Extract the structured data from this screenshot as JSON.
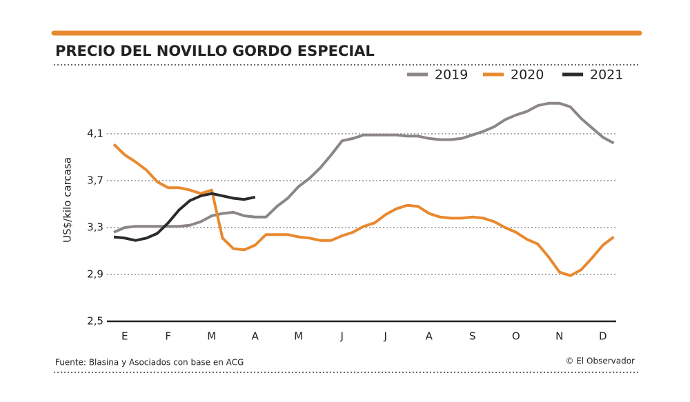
{
  "chart_data": {
    "type": "line",
    "title": "PRECIO DEL NOVILLO GORDO ESPECIAL",
    "y_label": "US$/kilo carcasa",
    "source": "Fuente: Blasina y Asociados con base en ACG",
    "credit": "© El Observador",
    "categories": [
      null,
      "E",
      null,
      null,
      null,
      "F",
      null,
      null,
      null,
      "M",
      null,
      null,
      null,
      "A",
      null,
      null,
      null,
      "M",
      null,
      null,
      null,
      "J",
      null,
      null,
      null,
      "J",
      null,
      null,
      null,
      "A",
      null,
      null,
      null,
      "S",
      null,
      null,
      null,
      "O",
      null,
      null,
      null,
      "N",
      null,
      null,
      null,
      "D",
      null,
      null
    ],
    "ylim": [
      2.5,
      4.4
    ],
    "yticks": [
      {
        "value": 2.5,
        "label": "2,5"
      },
      {
        "value": 2.9,
        "label": "2,9"
      },
      {
        "value": 3.3,
        "label": "3,3"
      },
      {
        "value": 3.7,
        "label": "3,7"
      },
      {
        "value": 4.1,
        "label": "4,1"
      }
    ],
    "grid": true,
    "series": [
      {
        "name": "2019",
        "color": "#8c8786",
        "values": [
          3.26,
          3.3,
          3.31,
          3.31,
          3.31,
          3.31,
          3.31,
          3.32,
          3.35,
          3.4,
          3.42,
          3.43,
          3.4,
          3.39,
          3.39,
          3.48,
          3.55,
          3.65,
          3.72,
          3.81,
          3.92,
          4.04,
          4.06,
          4.09,
          4.09,
          4.09,
          4.09,
          4.08,
          4.08,
          4.06,
          4.05,
          4.05,
          4.06,
          4.09,
          4.12,
          4.16,
          4.22,
          4.26,
          4.29,
          4.34,
          4.36,
          4.36,
          4.33,
          4.23,
          4.15,
          4.07,
          4.02,
          null
        ]
      },
      {
        "name": "2020",
        "color": "#e8892f",
        "values": [
          4.01,
          3.92,
          3.86,
          3.79,
          3.69,
          3.64,
          3.64,
          3.62,
          3.59,
          3.62,
          3.21,
          3.12,
          3.11,
          3.15,
          3.24,
          3.24,
          3.24,
          3.22,
          3.21,
          3.19,
          3.19,
          3.23,
          3.26,
          3.31,
          3.34,
          3.41,
          3.46,
          3.49,
          3.48,
          3.42,
          3.39,
          3.38,
          3.38,
          3.39,
          3.38,
          3.35,
          3.3,
          3.26,
          3.2,
          3.16,
          3.05,
          2.92,
          2.89,
          2.94,
          3.04,
          3.15,
          3.22,
          null
        ]
      },
      {
        "name": "2021",
        "color": "#2b2b2b",
        "values": [
          3.22,
          3.21,
          3.19,
          3.21,
          3.25,
          3.34,
          3.45,
          3.53,
          3.57,
          3.59,
          3.57,
          3.55,
          3.54,
          3.56,
          null,
          null,
          null,
          null,
          null,
          null,
          null,
          null,
          null,
          null,
          null,
          null,
          null,
          null,
          null,
          null,
          null,
          null,
          null,
          null,
          null,
          null,
          null,
          null,
          null,
          null,
          null,
          null,
          null,
          null,
          null,
          null,
          null,
          null
        ]
      }
    ]
  }
}
